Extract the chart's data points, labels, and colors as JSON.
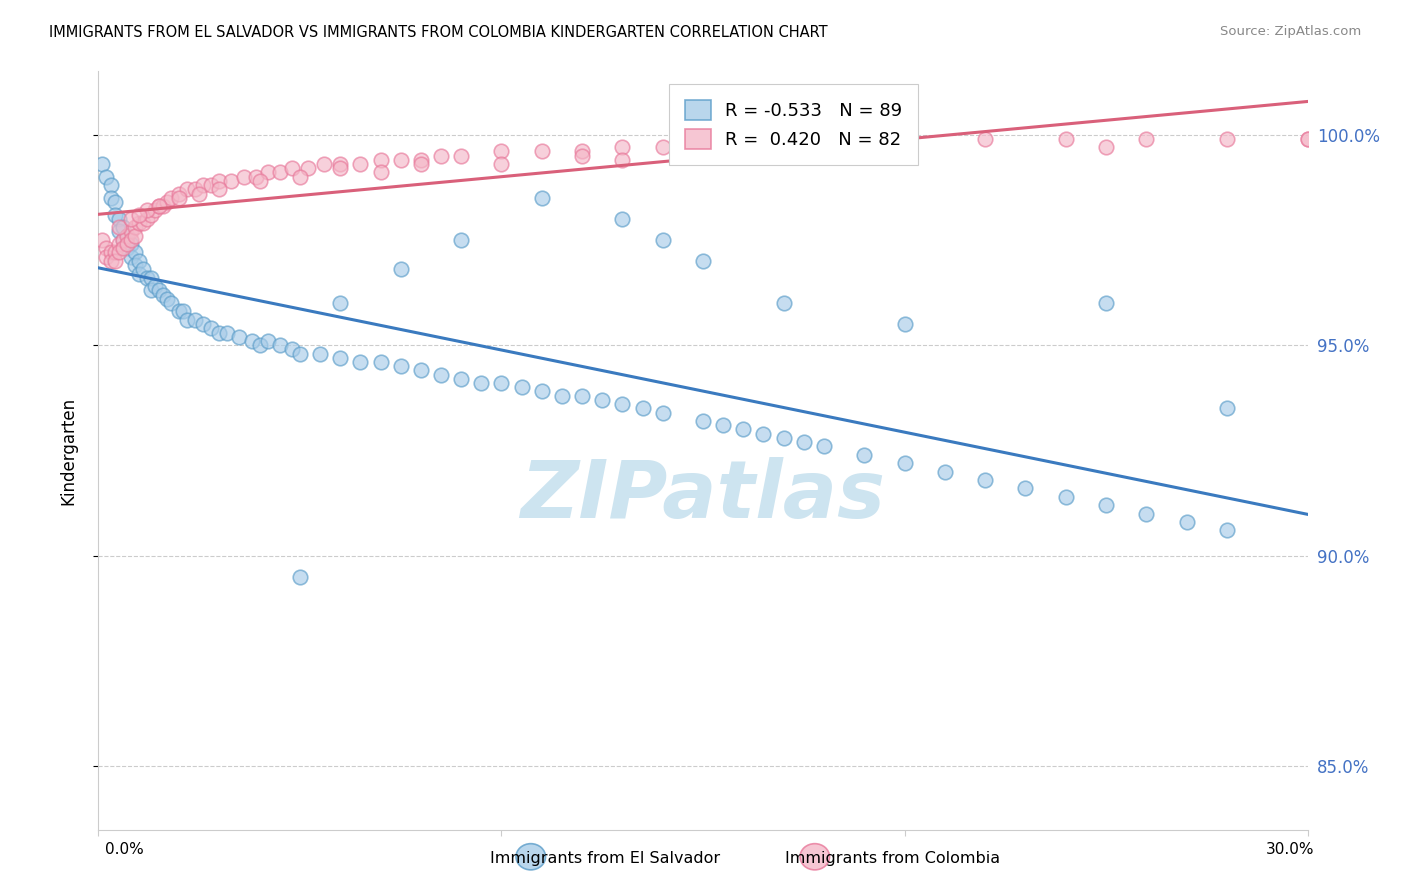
{
  "title": "IMMIGRANTS FROM EL SALVADOR VS IMMIGRANTS FROM COLOMBIA KINDERGARTEN CORRELATION CHART",
  "source": "Source: ZipAtlas.com",
  "ylabel": "Kindergarten",
  "ytick_labels": [
    "85.0%",
    "90.0%",
    "95.0%",
    "100.0%"
  ],
  "ytick_values": [
    0.85,
    0.9,
    0.95,
    1.0
  ],
  "xlim": [
    0.0,
    0.3
  ],
  "ylim": [
    0.835,
    1.015
  ],
  "legend_r1": "R = -0.533",
  "legend_n1": "N = 89",
  "legend_r2": "R =  0.420",
  "legend_n2": "N = 82",
  "legend_label1": "Immigrants from El Salvador",
  "legend_label2": "Immigrants from Colombia",
  "color_blue_fill": "#a8cce8",
  "color_blue_edge": "#5b9dc9",
  "color_line_blue": "#3a7abf",
  "color_pink_fill": "#f4b8c8",
  "color_pink_edge": "#e8789a",
  "color_line_pink": "#d9607a",
  "watermark": "ZIPatlas",
  "watermark_color": "#cde4f0",
  "el_salvador_x": [
    0.001,
    0.002,
    0.003,
    0.003,
    0.004,
    0.004,
    0.005,
    0.005,
    0.006,
    0.006,
    0.007,
    0.007,
    0.008,
    0.008,
    0.009,
    0.009,
    0.01,
    0.01,
    0.011,
    0.012,
    0.013,
    0.013,
    0.014,
    0.015,
    0.016,
    0.017,
    0.018,
    0.02,
    0.021,
    0.022,
    0.024,
    0.026,
    0.028,
    0.03,
    0.032,
    0.035,
    0.038,
    0.04,
    0.042,
    0.045,
    0.048,
    0.05,
    0.055,
    0.06,
    0.065,
    0.07,
    0.075,
    0.08,
    0.085,
    0.09,
    0.095,
    0.1,
    0.105,
    0.11,
    0.115,
    0.12,
    0.125,
    0.13,
    0.135,
    0.14,
    0.15,
    0.155,
    0.16,
    0.165,
    0.17,
    0.175,
    0.18,
    0.19,
    0.2,
    0.21,
    0.22,
    0.23,
    0.24,
    0.25,
    0.26,
    0.27,
    0.28,
    0.15,
    0.17,
    0.2,
    0.25,
    0.28,
    0.14,
    0.13,
    0.11,
    0.09,
    0.075,
    0.06,
    0.05
  ],
  "el_salvador_y": [
    0.993,
    0.99,
    0.988,
    0.985,
    0.984,
    0.981,
    0.98,
    0.977,
    0.978,
    0.975,
    0.976,
    0.973,
    0.974,
    0.971,
    0.972,
    0.969,
    0.97,
    0.967,
    0.968,
    0.966,
    0.966,
    0.963,
    0.964,
    0.963,
    0.962,
    0.961,
    0.96,
    0.958,
    0.958,
    0.956,
    0.956,
    0.955,
    0.954,
    0.953,
    0.953,
    0.952,
    0.951,
    0.95,
    0.951,
    0.95,
    0.949,
    0.948,
    0.948,
    0.947,
    0.946,
    0.946,
    0.945,
    0.944,
    0.943,
    0.942,
    0.941,
    0.941,
    0.94,
    0.939,
    0.938,
    0.938,
    0.937,
    0.936,
    0.935,
    0.934,
    0.932,
    0.931,
    0.93,
    0.929,
    0.928,
    0.927,
    0.926,
    0.924,
    0.922,
    0.92,
    0.918,
    0.916,
    0.914,
    0.912,
    0.91,
    0.908,
    0.906,
    0.97,
    0.96,
    0.955,
    0.96,
    0.935,
    0.975,
    0.98,
    0.985,
    0.975,
    0.968,
    0.96,
    0.895
  ],
  "colombia_x": [
    0.001,
    0.002,
    0.002,
    0.003,
    0.003,
    0.004,
    0.004,
    0.005,
    0.005,
    0.006,
    0.006,
    0.007,
    0.007,
    0.008,
    0.008,
    0.009,
    0.009,
    0.01,
    0.011,
    0.012,
    0.013,
    0.014,
    0.015,
    0.016,
    0.017,
    0.018,
    0.02,
    0.022,
    0.024,
    0.026,
    0.028,
    0.03,
    0.033,
    0.036,
    0.039,
    0.042,
    0.045,
    0.048,
    0.052,
    0.056,
    0.06,
    0.065,
    0.07,
    0.075,
    0.08,
    0.085,
    0.09,
    0.1,
    0.11,
    0.12,
    0.13,
    0.14,
    0.15,
    0.16,
    0.17,
    0.18,
    0.2,
    0.22,
    0.24,
    0.26,
    0.28,
    0.3,
    0.005,
    0.008,
    0.012,
    0.02,
    0.03,
    0.05,
    0.07,
    0.1,
    0.13,
    0.16,
    0.2,
    0.25,
    0.3,
    0.01,
    0.015,
    0.025,
    0.04,
    0.06,
    0.08,
    0.12
  ],
  "colombia_y": [
    0.975,
    0.973,
    0.971,
    0.972,
    0.97,
    0.972,
    0.97,
    0.974,
    0.972,
    0.975,
    0.973,
    0.976,
    0.974,
    0.977,
    0.975,
    0.978,
    0.976,
    0.979,
    0.979,
    0.98,
    0.981,
    0.982,
    0.983,
    0.983,
    0.984,
    0.985,
    0.986,
    0.987,
    0.987,
    0.988,
    0.988,
    0.989,
    0.989,
    0.99,
    0.99,
    0.991,
    0.991,
    0.992,
    0.992,
    0.993,
    0.993,
    0.993,
    0.994,
    0.994,
    0.994,
    0.995,
    0.995,
    0.996,
    0.996,
    0.996,
    0.997,
    0.997,
    0.998,
    0.998,
    0.998,
    0.999,
    0.999,
    0.999,
    0.999,
    0.999,
    0.999,
    0.999,
    0.978,
    0.98,
    0.982,
    0.985,
    0.987,
    0.99,
    0.991,
    0.993,
    0.994,
    0.995,
    0.996,
    0.997,
    0.999,
    0.981,
    0.983,
    0.986,
    0.989,
    0.992,
    0.993,
    0.995
  ]
}
